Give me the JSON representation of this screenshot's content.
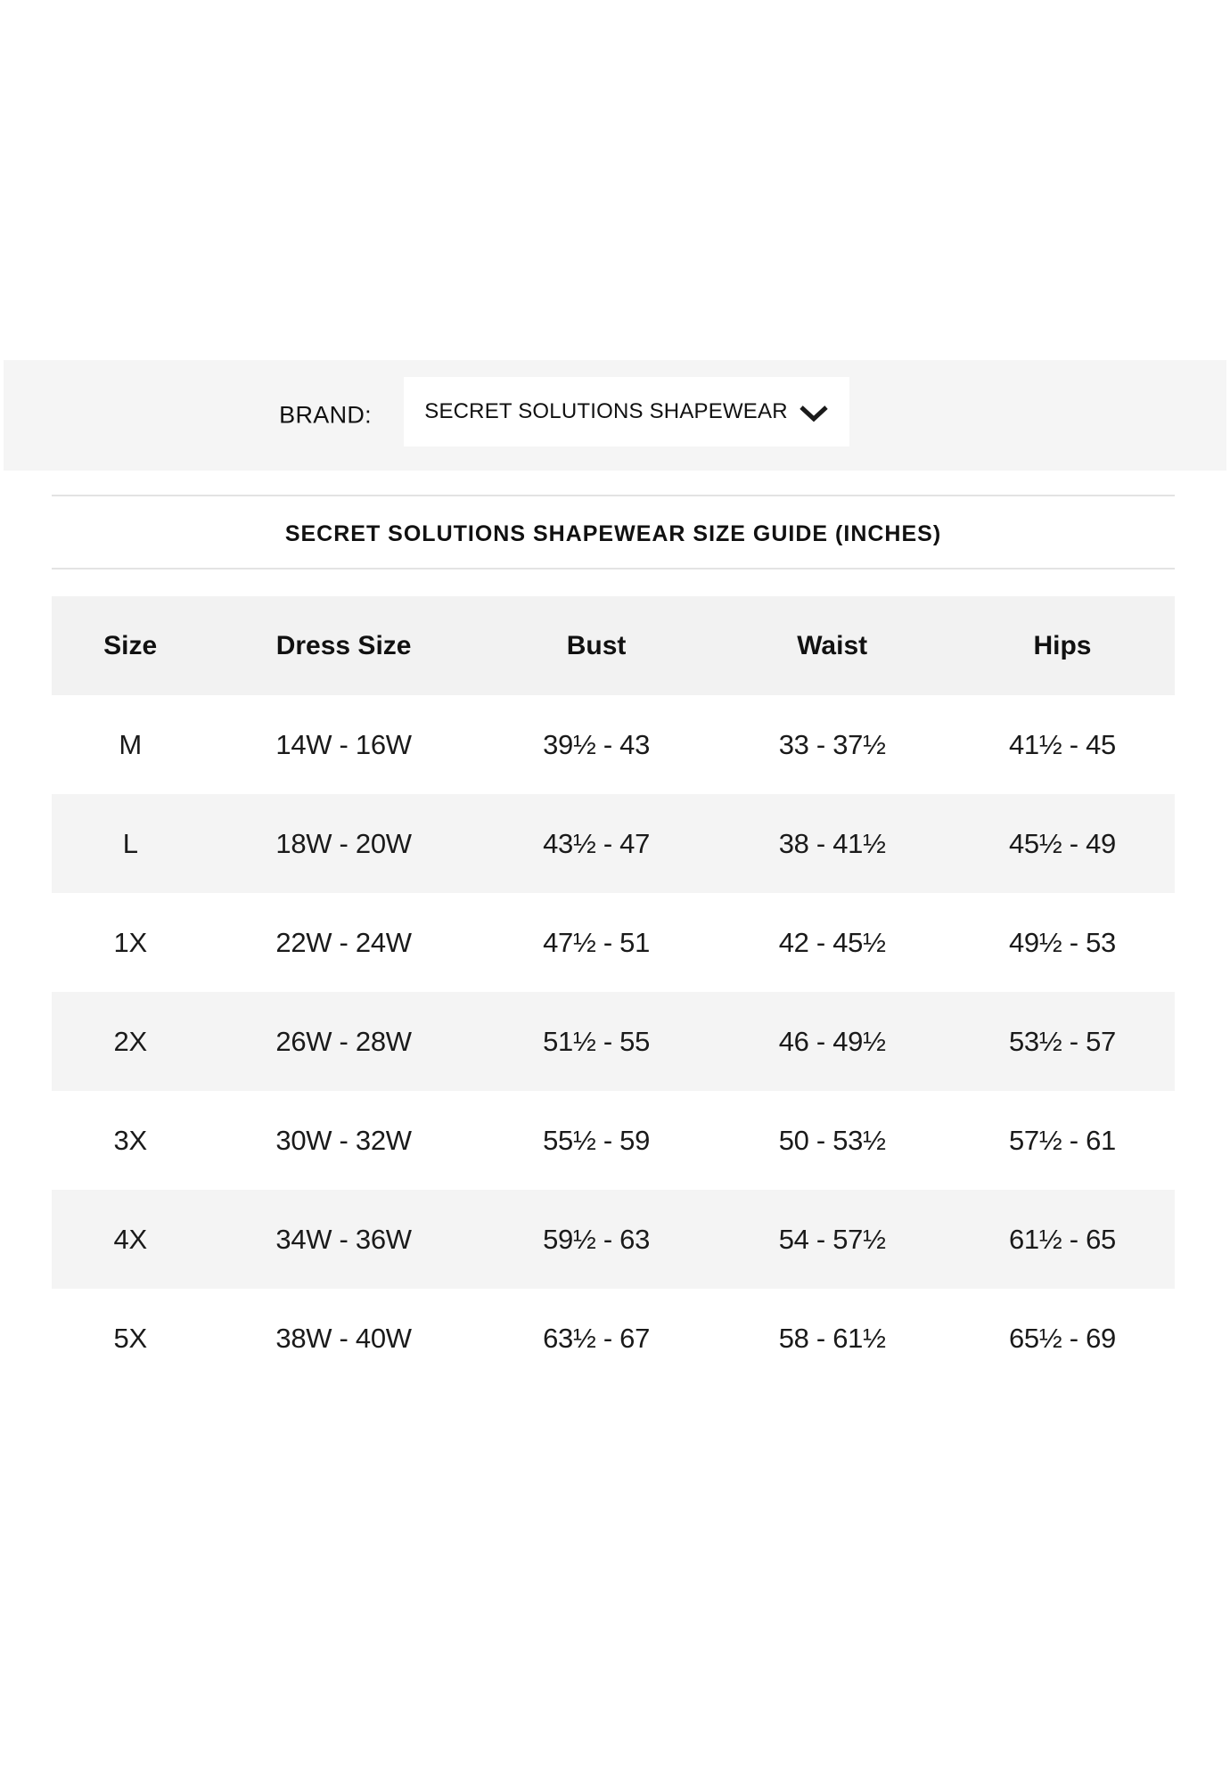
{
  "brand_bar": {
    "label": "BRAND:",
    "dropdown": {
      "value": "SECRET SOLUTIONS SHAPEWEAR",
      "icon": "chevron-down"
    }
  },
  "size_guide": {
    "title": "SECRET SOLUTIONS SHAPEWEAR SIZE GUIDE (INCHES)",
    "table": {
      "columns": [
        "Size",
        "Dress Size",
        "Bust",
        "Waist",
        "Hips"
      ],
      "rows": [
        [
          "M",
          "14W - 16W",
          "39½ - 43",
          "33 - 37½",
          "41½ - 45"
        ],
        [
          "L",
          "18W - 20W",
          "43½ - 47",
          "38 - 41½",
          "45½ - 49"
        ],
        [
          "1X",
          "22W - 24W",
          "47½ - 51",
          "42 - 45½",
          "49½ - 53"
        ],
        [
          "2X",
          "26W - 28W",
          "51½ - 55",
          "46 - 49½",
          "53½ - 57"
        ],
        [
          "3X",
          "30W - 32W",
          "55½ - 59",
          "50 - 53½",
          "57½ - 61"
        ],
        [
          "4X",
          "34W - 36W",
          "59½ - 63",
          "54 - 57½",
          "61½ - 65"
        ],
        [
          "5X",
          "38W - 40W",
          "63½ - 67",
          "58 - 61½",
          "65½ - 69"
        ]
      ]
    }
  },
  "colors": {
    "band_bg": "#f5f5f5",
    "header_row_bg": "#f2f2f2",
    "alt_row_bg": "#f4f4f4",
    "divider": "#e3e3e3",
    "text": "#1a1a1a"
  }
}
